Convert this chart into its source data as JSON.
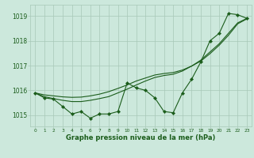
{
  "hours": [
    0,
    1,
    2,
    3,
    4,
    5,
    6,
    7,
    8,
    9,
    10,
    11,
    12,
    13,
    14,
    15,
    16,
    17,
    18,
    19,
    20,
    21,
    22,
    23
  ],
  "pressure_main": [
    1015.9,
    1015.7,
    1015.65,
    1015.35,
    1015.05,
    1015.15,
    1014.88,
    1015.05,
    1015.05,
    1015.15,
    1016.3,
    1016.1,
    1016.0,
    1015.7,
    1015.15,
    1015.1,
    1015.9,
    1016.45,
    1017.15,
    1018.0,
    1018.3,
    1019.1,
    1019.05,
    1018.9
  ],
  "pressure_smooth1": [
    1015.9,
    1015.82,
    1015.78,
    1015.74,
    1015.72,
    1015.73,
    1015.78,
    1015.85,
    1015.95,
    1016.08,
    1016.22,
    1016.38,
    1016.5,
    1016.62,
    1016.68,
    1016.72,
    1016.82,
    1016.98,
    1017.18,
    1017.48,
    1017.82,
    1018.22,
    1018.68,
    1018.88
  ],
  "pressure_smooth2": [
    1015.9,
    1015.75,
    1015.67,
    1015.6,
    1015.55,
    1015.55,
    1015.6,
    1015.67,
    1015.75,
    1015.9,
    1016.05,
    1016.22,
    1016.38,
    1016.52,
    1016.6,
    1016.65,
    1016.78,
    1016.98,
    1017.22,
    1017.55,
    1017.88,
    1018.3,
    1018.72,
    1018.9
  ],
  "line_color": "#1a5c1a",
  "bg_color": "#cce8dc",
  "grid_color": "#a8c8b8",
  "ylim_min": 1014.55,
  "ylim_max": 1019.45,
  "yticks": [
    1015,
    1016,
    1017,
    1018,
    1019
  ],
  "xlabel": "Graphe pression niveau de la mer (hPa)",
  "marker_size": 2.2,
  "lw": 0.8
}
